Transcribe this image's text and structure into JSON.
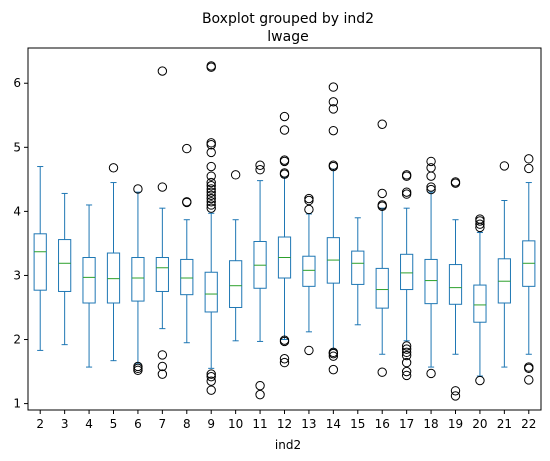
{
  "chart_data": {
    "type": "boxplot",
    "title": "Boxplot grouped by ind2",
    "subtitle": "lwage",
    "xlabel": "ind2",
    "ylabel": "",
    "categories": [
      "2",
      "3",
      "4",
      "5",
      "6",
      "7",
      "8",
      "9",
      "10",
      "11",
      "12",
      "13",
      "14",
      "15",
      "16",
      "17",
      "18",
      "19",
      "20",
      "21",
      "22"
    ],
    "ylim": [
      0.9,
      6.55
    ],
    "yticks": [
      1,
      2,
      3,
      4,
      5,
      6
    ],
    "grid": false,
    "colors": {
      "box": "#1f77b4",
      "median": "#2ca02c",
      "flier": "#000000"
    },
    "boxes": [
      {
        "cat": "2",
        "whislo": 1.83,
        "q1": 2.77,
        "med": 3.37,
        "q3": 3.65,
        "whishi": 4.7,
        "fliers": []
      },
      {
        "cat": "3",
        "whislo": 1.92,
        "q1": 2.75,
        "med": 3.19,
        "q3": 3.56,
        "whishi": 4.28,
        "fliers": []
      },
      {
        "cat": "4",
        "whislo": 1.57,
        "q1": 2.57,
        "med": 2.97,
        "q3": 3.28,
        "whishi": 4.1,
        "fliers": []
      },
      {
        "cat": "5",
        "whislo": 1.67,
        "q1": 2.57,
        "med": 2.95,
        "q3": 3.35,
        "whishi": 4.45,
        "fliers": [
          4.68
        ]
      },
      {
        "cat": "6",
        "whislo": 1.62,
        "q1": 2.6,
        "med": 2.96,
        "q3": 3.28,
        "whishi": 4.3,
        "fliers": [
          4.35,
          1.58,
          1.55,
          1.52
        ]
      },
      {
        "cat": "7",
        "whislo": 2.17,
        "q1": 2.75,
        "med": 3.12,
        "q3": 3.28,
        "whishi": 4.05,
        "fliers": [
          4.38,
          6.19,
          1.76,
          1.58,
          1.46
        ]
      },
      {
        "cat": "8",
        "whislo": 1.95,
        "q1": 2.7,
        "med": 2.96,
        "q3": 3.25,
        "whishi": 3.87,
        "fliers": [
          4.15,
          4.14,
          4.98
        ]
      },
      {
        "cat": "9",
        "whislo": 1.55,
        "q1": 2.43,
        "med": 2.71,
        "q3": 3.05,
        "whishi": 3.97,
        "fliers": [
          4.05,
          4.1,
          4.15,
          4.2,
          4.25,
          4.3,
          4.35,
          4.4,
          4.45,
          4.55,
          4.7,
          4.92,
          5.04,
          5.07,
          6.25,
          6.27,
          1.46,
          1.42,
          1.35,
          1.21
        ]
      },
      {
        "cat": "10",
        "whislo": 1.98,
        "q1": 2.5,
        "med": 2.84,
        "q3": 3.23,
        "whishi": 3.87,
        "fliers": [
          4.57
        ]
      },
      {
        "cat": "11",
        "whislo": 1.97,
        "q1": 2.8,
        "med": 3.16,
        "q3": 3.53,
        "whishi": 4.48,
        "fliers": [
          4.65,
          4.72,
          1.28,
          1.14
        ]
      },
      {
        "cat": "12",
        "whislo": 2.0,
        "q1": 2.96,
        "med": 3.28,
        "q3": 3.6,
        "whishi": 4.53,
        "fliers": [
          4.58,
          4.6,
          4.78,
          4.8,
          5.27,
          5.48,
          1.99,
          1.97,
          1.7,
          1.64
        ]
      },
      {
        "cat": "13",
        "whislo": 2.12,
        "q1": 2.83,
        "med": 3.08,
        "q3": 3.3,
        "whishi": 3.96,
        "fliers": [
          4.03,
          4.17,
          4.2,
          1.83
        ]
      },
      {
        "cat": "14",
        "whislo": 1.85,
        "q1": 2.88,
        "med": 3.24,
        "q3": 3.59,
        "whishi": 4.66,
        "fliers": [
          4.7,
          4.72,
          5.26,
          5.6,
          5.71,
          5.94,
          1.8,
          1.78,
          1.74,
          1.53
        ]
      },
      {
        "cat": "15",
        "whislo": 2.23,
        "q1": 2.86,
        "med": 3.19,
        "q3": 3.38,
        "whishi": 3.9,
        "fliers": []
      },
      {
        "cat": "16",
        "whislo": 1.77,
        "q1": 2.49,
        "med": 2.78,
        "q3": 3.11,
        "whishi": 4.05,
        "fliers": [
          4.08,
          4.1,
          4.28,
          5.36,
          1.49
        ]
      },
      {
        "cat": "17",
        "whislo": 1.98,
        "q1": 2.78,
        "med": 3.04,
        "q3": 3.33,
        "whishi": 4.05,
        "fliers": [
          4.27,
          4.3,
          4.55,
          4.57,
          1.9,
          1.85,
          1.8,
          1.75,
          1.64,
          1.5,
          1.44
        ]
      },
      {
        "cat": "18",
        "whislo": 1.57,
        "q1": 2.56,
        "med": 2.92,
        "q3": 3.25,
        "whishi": 4.3,
        "fliers": [
          4.34,
          4.38,
          4.55,
          4.68,
          4.78,
          1.47
        ]
      },
      {
        "cat": "19",
        "whislo": 1.77,
        "q1": 2.55,
        "med": 2.81,
        "q3": 3.17,
        "whishi": 3.87,
        "fliers": [
          4.44,
          4.46,
          1.2,
          1.12
        ]
      },
      {
        "cat": "20",
        "whislo": 1.43,
        "q1": 2.27,
        "med": 2.54,
        "q3": 2.85,
        "whishi": 3.67,
        "fliers": [
          3.75,
          3.8,
          3.85,
          3.88,
          1.36
        ]
      },
      {
        "cat": "21",
        "whislo": 1.57,
        "q1": 2.57,
        "med": 2.91,
        "q3": 3.26,
        "whishi": 4.17,
        "fliers": [
          4.71
        ]
      },
      {
        "cat": "22",
        "whislo": 1.77,
        "q1": 2.83,
        "med": 3.19,
        "q3": 3.54,
        "whishi": 4.45,
        "fliers": [
          4.67,
          4.82,
          1.57,
          1.55,
          1.37
        ]
      }
    ]
  }
}
